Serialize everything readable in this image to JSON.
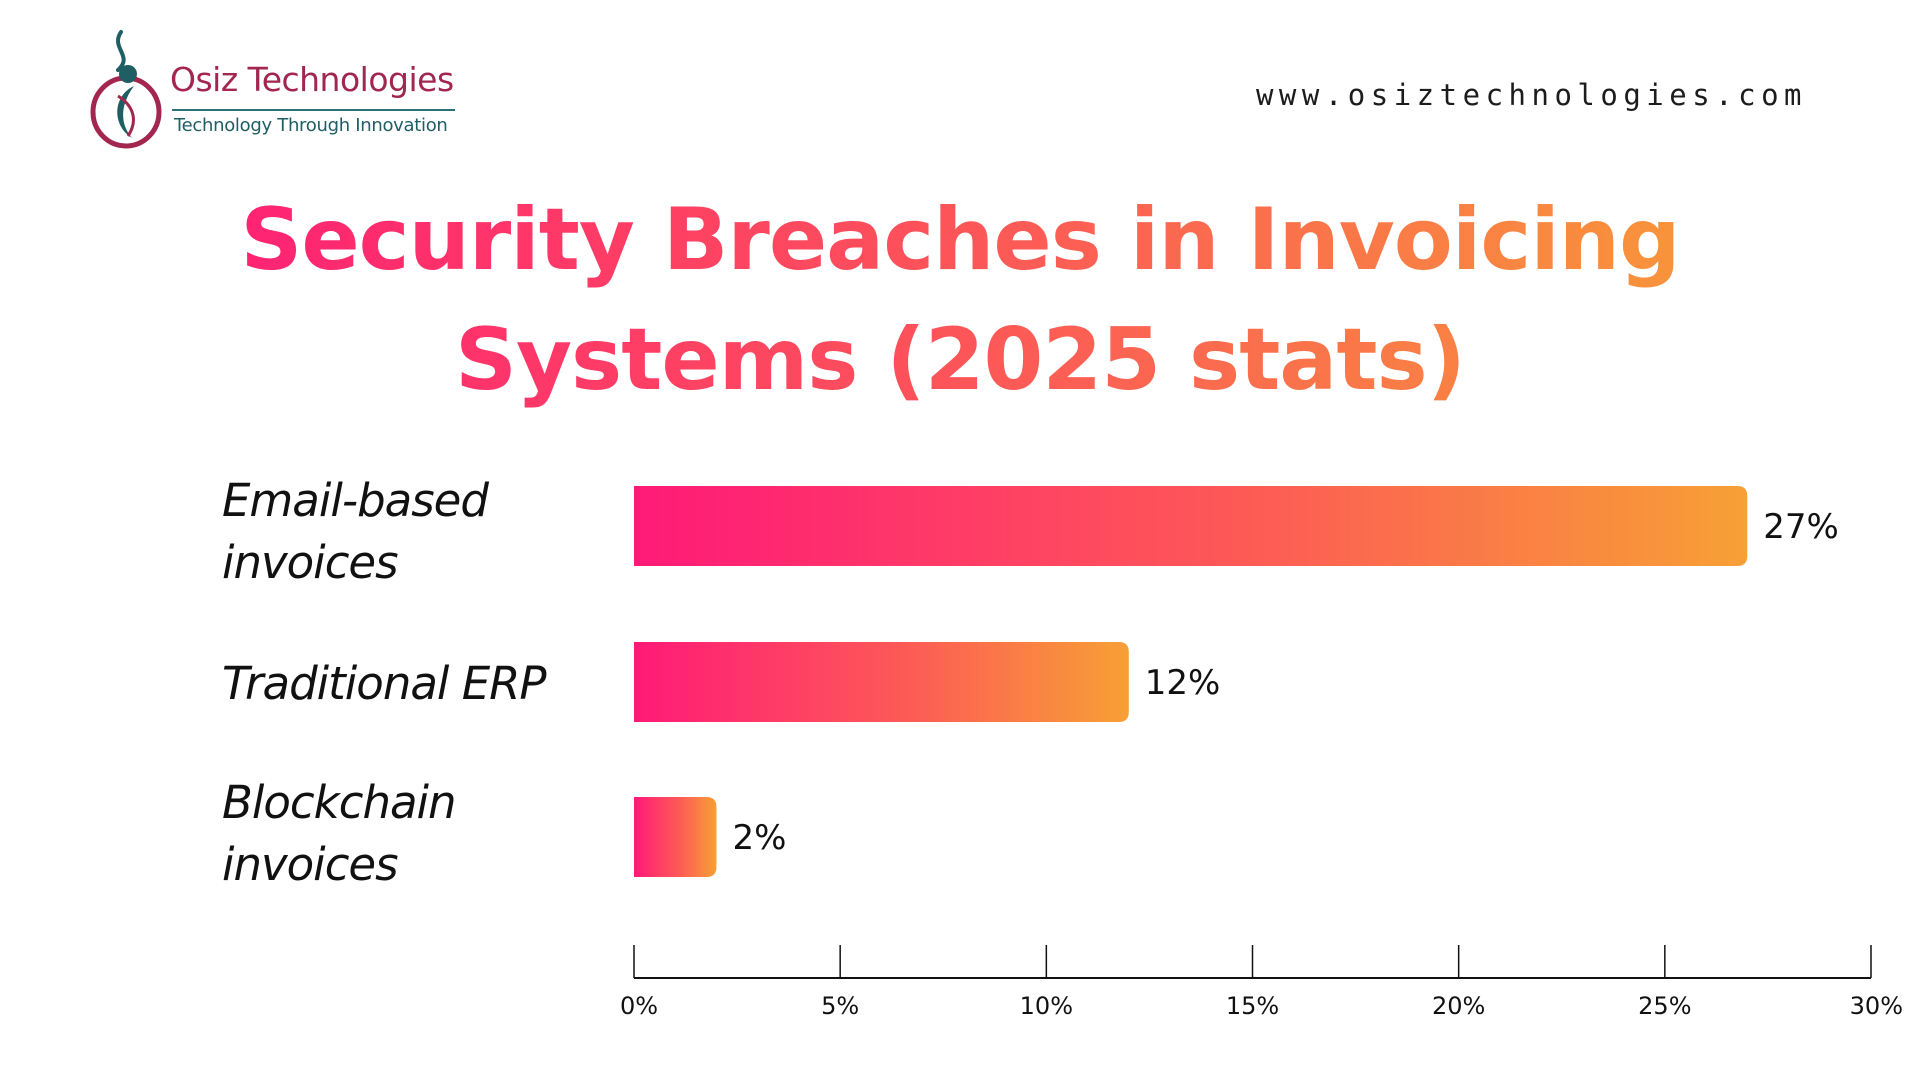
{
  "brand": {
    "name": "Osiz Technologies",
    "tagline": "Technology Through Innovation",
    "website": "www.osiztechnologies.com"
  },
  "colors": {
    "gradient_start": "#ff1a78",
    "gradient_end": "#f7a035",
    "brand_primary": "#a3264f",
    "brand_secondary": "#1f5e63"
  },
  "chart_data": {
    "type": "bar",
    "orientation": "horizontal",
    "title": "Security Breaches in Invoicing Systems (2025 stats)",
    "categories": [
      "Email-based invoices",
      "Traditional ERP",
      "Blockchain invoices"
    ],
    "values": [
      27,
      12,
      2
    ],
    "value_labels": [
      "27%",
      "12%",
      "2%"
    ],
    "xlim": [
      0,
      30
    ],
    "x_ticks": [
      0,
      5,
      10,
      15,
      20,
      25,
      30
    ],
    "x_tick_labels": [
      "0%",
      "5%",
      "10%",
      "15%",
      "20%",
      "25%",
      "30%"
    ],
    "xlabel": "",
    "ylabel": "",
    "grid": false,
    "legend": "none"
  }
}
